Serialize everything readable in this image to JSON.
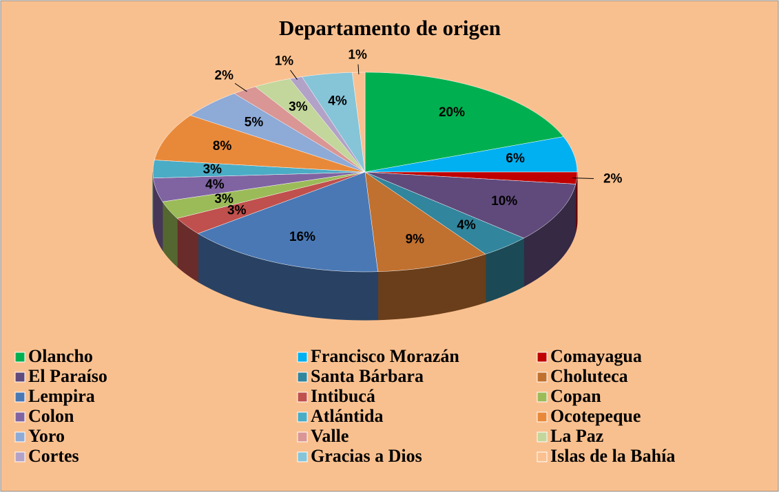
{
  "chart_data": {
    "type": "pie",
    "title": "Departamento de origen",
    "categories": [
      "Olancho",
      "Francisco Morazán",
      "Comayagua",
      "El Paraíso",
      "Santa Bárbara",
      "Choluteca",
      "Lempira",
      "Intibucá",
      "Copan",
      "Colon",
      "Atlántida",
      "Ocotepeque",
      "Yoro",
      "Valle",
      "La Paz",
      "Cortes",
      "Gracias a Dios",
      "Islas de la Bahía"
    ],
    "values": [
      20,
      6,
      2,
      10,
      4,
      9,
      16,
      3,
      3,
      4,
      3,
      8,
      5,
      2,
      3,
      1,
      4,
      1
    ],
    "value_labels": [
      "20%",
      "6%",
      "2%",
      "10%",
      "4%",
      "9%",
      "16%",
      "3%",
      "3%",
      "4%",
      "3%",
      "8%",
      "5%",
      "2%",
      "3%",
      "1%",
      "4%",
      "1%"
    ],
    "colors": [
      "#00b050",
      "#00b0f0",
      "#c00000",
      "#604a7b",
      "#31859c",
      "#c0702f",
      "#4a78b4",
      "#c0504d",
      "#9bbb59",
      "#8064a2",
      "#4bacc6",
      "#e8893a",
      "#8eaad6",
      "#d99694",
      "#c3d69b",
      "#b3a2c7",
      "#86c4d8",
      "#fac090"
    ],
    "legend": "bottom"
  }
}
